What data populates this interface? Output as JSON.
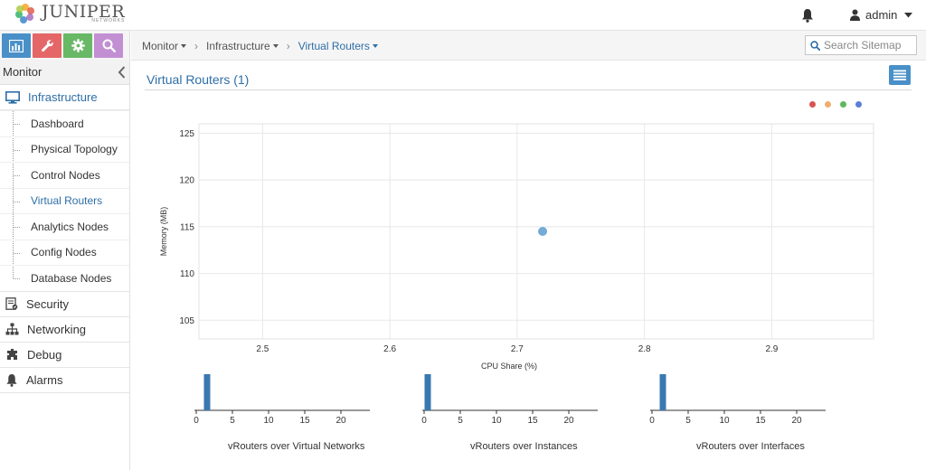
{
  "header": {
    "brand": "JUNIPER",
    "brand_sub": "NETWORKS",
    "user": "admin"
  },
  "sidebar": {
    "title": "Monitor",
    "sections": [
      {
        "label": "Infrastructure",
        "icon": "monitor-icon",
        "active": true
      },
      {
        "label": "Security",
        "icon": "security-icon"
      },
      {
        "label": "Networking",
        "icon": "network-icon"
      },
      {
        "label": "Debug",
        "icon": "debug-icon"
      },
      {
        "label": "Alarms",
        "icon": "bell-icon"
      }
    ],
    "infrastructure_items": [
      {
        "label": "Dashboard"
      },
      {
        "label": "Physical Topology"
      },
      {
        "label": "Control Nodes"
      },
      {
        "label": "Virtual Routers",
        "active": true
      },
      {
        "label": "Analytics Nodes"
      },
      {
        "label": "Config Nodes"
      },
      {
        "label": "Database Nodes"
      }
    ]
  },
  "breadcrumb": [
    "Monitor",
    "Infrastructure",
    "Virtual Routers"
  ],
  "search": {
    "placeholder": "Search Sitemap"
  },
  "page": {
    "title": "Virtual Routers (1)"
  },
  "colors": {
    "accent": "#2e6ea6",
    "legend": [
      "#d9534f",
      "#f0ad6e",
      "#5cb85c",
      "#5b7fd6"
    ],
    "point": "#6ba8d4",
    "bar": "#3a78b0"
  },
  "chart_data": [
    {
      "type": "scatter",
      "xlabel": "CPU Share (%)",
      "ylabel": "Memory (MB)",
      "xlim": [
        2.45,
        2.98
      ],
      "ylim": [
        103,
        126
      ],
      "xticks": [
        "2.5",
        "2.6",
        "2.7",
        "2.8",
        "2.9"
      ],
      "yticks": [
        "105",
        "110",
        "115",
        "120",
        "125"
      ],
      "points": [
        {
          "x": 2.72,
          "y": 114.5
        }
      ],
      "grid": true
    },
    {
      "type": "bar",
      "title": "vRouters over Virtual Networks",
      "xticks": [
        "0",
        "5",
        "10",
        "15",
        "20"
      ],
      "xlim": [
        0,
        24
      ],
      "bars": [
        {
          "x": 1.5,
          "value": 1
        }
      ]
    },
    {
      "type": "bar",
      "title": "vRouters over Instances",
      "xticks": [
        "0",
        "5",
        "10",
        "15",
        "20"
      ],
      "xlim": [
        0,
        24
      ],
      "bars": [
        {
          "x": 0.5,
          "value": 1
        }
      ]
    },
    {
      "type": "bar",
      "title": "vRouters over Interfaces",
      "xticks": [
        "0",
        "5",
        "10",
        "15",
        "20"
      ],
      "xlim": [
        0,
        24
      ],
      "bars": [
        {
          "x": 1.5,
          "value": 1
        }
      ]
    }
  ]
}
